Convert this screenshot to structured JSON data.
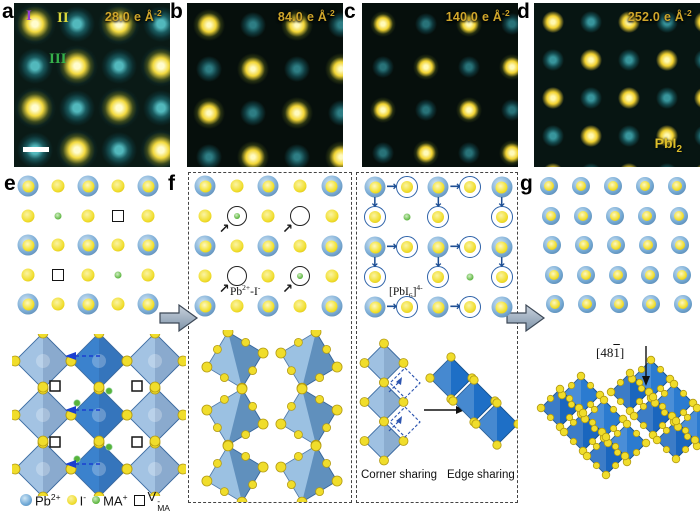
{
  "panels": {
    "a": {
      "letter": "a",
      "dose_value": "28.0",
      "dose_unit": "e Å",
      "dose_exp": "-2",
      "regions": [
        {
          "numeral": "I"
        },
        {
          "numeral": "II"
        },
        {
          "numeral": "III"
        }
      ]
    },
    "b": {
      "letter": "b",
      "dose_value": "84.0",
      "dose_unit": "e Å",
      "dose_exp": "-2"
    },
    "c": {
      "letter": "c",
      "dose_value": "140.0",
      "dose_unit": "e Å",
      "dose_exp": "-2"
    },
    "d": {
      "letter": "d",
      "dose_value": "252.0",
      "dose_unit": "e Å",
      "dose_exp": "-2",
      "product_base": "PbI",
      "product_sub": "2"
    },
    "e": {
      "letter": "e"
    },
    "f": {
      "letter": "f",
      "defect_p1": "Pb",
      "defect_s1": "2+",
      "defect_p2": "-I",
      "defect_s2": "-",
      "complex_pre": "[PbI",
      "complex_sub": "6",
      "complex_post": "]",
      "complex_sup": "4-",
      "corner_label": "Corner sharing",
      "edge_label": "Edge sharing"
    },
    "g": {
      "letter": "g",
      "direction_pre": "[48",
      "direction_bar": "1",
      "direction_post": "]"
    }
  },
  "legend": {
    "items": [
      {
        "name": "pb-ion",
        "base": "Pb",
        "sup": "2+"
      },
      {
        "name": "iodide-ion",
        "base": "I",
        "sup": "-"
      },
      {
        "name": "ma-ion",
        "base": "MA",
        "sup": "+"
      },
      {
        "name": "ma-vacancy",
        "base": "V",
        "sup": "-",
        "sub": "MA"
      }
    ]
  },
  "lattices": {
    "e": [
      "PiPiP",
      "imivi",
      "PiPiP",
      "ivimi",
      "PiPiP"
    ],
    "f_left": [
      "PiPiP",
      "iMiOi",
      "PiPiP",
      "iOiMi",
      "PiPiP"
    ],
    "f_right": [
      "PCPCP",
      "CmC.C",
      "PCPCP",
      "C.CmC",
      "PCPCP"
    ],
    "g": [
      "GGGGG",
      "GGGGG",
      "GGGGG",
      "GGGGG",
      "GGGGG"
    ]
  },
  "icons": {
    "diag_arrow": "↗",
    "right_arrow": "→",
    "down_arrow": "↓"
  },
  "colors": {
    "stem_yellow": "#ffe24a",
    "stem_teal": "#1f7f8e",
    "dose_text": "#cfa62b",
    "octa_light": "#a3c3e3",
    "octa_dark": "#1e6fc6",
    "atom_blue": "#6fa8d6",
    "atom_yellow": "#f0dd2b",
    "ma_green": "#58b33a",
    "region_1": "#9a3fd4",
    "region_2": "#dcd93c",
    "region_3": "#35b04a"
  }
}
